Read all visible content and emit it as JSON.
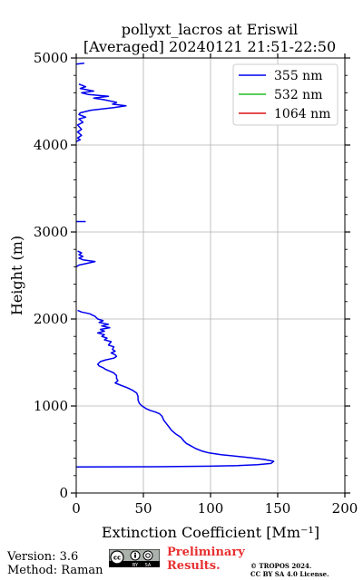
{
  "chart_data": {
    "type": "line",
    "title_line1": "pollyxt_lacros at Eriswil",
    "title_line2": "[Averaged] 20240121 21:51-22:50",
    "xlabel": "Extinction Coefficient [Mm⁻¹]",
    "ylabel": "Height (m)",
    "xlim": [
      0,
      200
    ],
    "ylim": [
      0,
      5000
    ],
    "x_ticks": [
      "0",
      "50",
      "100",
      "150",
      "200"
    ],
    "y_ticks": [
      "0",
      "1000",
      "2000",
      "3000",
      "4000",
      "5000"
    ],
    "x_tick_values": [
      0,
      50,
      100,
      150,
      200
    ],
    "y_tick_values": [
      0,
      1000,
      2000,
      3000,
      4000,
      5000
    ],
    "grid": true,
    "legend_position": "top-right",
    "series": [
      {
        "name": "355 nm",
        "color": "#0000ee",
        "segments": [
          [
            [
              0,
              300
            ],
            [
              60,
              302
            ],
            [
              100,
              308
            ],
            [
              120,
              315
            ],
            [
              135,
              325
            ],
            [
              145,
              340
            ],
            [
              147,
              365
            ],
            [
              140,
              385
            ],
            [
              130,
              405
            ],
            [
              118,
              425
            ],
            [
              108,
              440
            ],
            [
              99,
              460
            ],
            [
              94,
              480
            ],
            [
              89,
              510
            ],
            [
              85,
              545
            ],
            [
              82,
              570
            ],
            [
              80,
              600
            ],
            [
              78,
              640
            ],
            [
              74,
              680
            ],
            [
              71,
              720
            ],
            [
              69,
              760
            ],
            [
              67,
              800
            ],
            [
              65,
              840
            ],
            [
              64,
              880
            ],
            [
              62,
              910
            ],
            [
              59,
              930
            ],
            [
              55,
              950
            ],
            [
              52,
              970
            ],
            [
              49,
              1000
            ],
            [
              47,
              1030
            ],
            [
              46,
              1070
            ],
            [
              46,
              1110
            ],
            [
              45,
              1150
            ],
            [
              42,
              1180
            ],
            [
              38,
              1210
            ],
            [
              33,
              1240
            ],
            [
              29,
              1265
            ],
            [
              31,
              1290
            ],
            [
              30,
              1320
            ],
            [
              30,
              1350
            ],
            [
              28,
              1380
            ],
            [
              25,
              1400
            ],
            [
              22,
              1420
            ],
            [
              20,
              1440
            ],
            [
              17,
              1460
            ],
            [
              16,
              1480
            ],
            [
              18,
              1510
            ],
            [
              22,
              1530
            ],
            [
              28,
              1550
            ],
            [
              30,
              1570
            ],
            [
              29,
              1590
            ],
            [
              26,
              1610
            ],
            [
              29,
              1630
            ],
            [
              27,
              1650
            ],
            [
              28,
              1680
            ],
            [
              24,
              1700
            ],
            [
              25,
              1720
            ],
            [
              26,
              1740
            ],
            [
              21,
              1760
            ],
            [
              23,
              1780
            ],
            [
              19,
              1800
            ],
            [
              21,
              1820
            ],
            [
              16,
              1840
            ],
            [
              21,
              1860
            ],
            [
              18,
              1880
            ],
            [
              25,
              1900
            ],
            [
              19,
              1920
            ],
            [
              24,
              1940
            ],
            [
              17,
              1960
            ],
            [
              20,
              1980
            ],
            [
              16,
              2000
            ],
            [
              14,
              2030
            ],
            [
              10,
              2060
            ],
            [
              4,
              2080
            ],
            [
              1,
              2100
            ]
          ],
          [
            [
              0,
              2600
            ],
            [
              2,
              2620
            ],
            [
              8,
              2640
            ],
            [
              14,
              2660
            ],
            [
              5,
              2680
            ],
            [
              2,
              2700
            ],
            [
              5,
              2720
            ],
            [
              2,
              2740
            ],
            [
              4,
              2760
            ],
            [
              1,
              2780
            ]
          ],
          [
            [
              0,
              3120
            ],
            [
              7,
              3120
            ]
          ],
          [
            [
              0,
              4040
            ],
            [
              3,
              4060
            ],
            [
              1,
              4080
            ],
            [
              4,
              4110
            ],
            [
              1,
              4150
            ],
            [
              4,
              4180
            ],
            [
              1,
              4230
            ],
            [
              5,
              4260
            ],
            [
              2,
              4300
            ],
            [
              7,
              4320
            ],
            [
              2,
              4350
            ],
            [
              3,
              4370
            ],
            [
              11,
              4400
            ],
            [
              28,
              4430
            ],
            [
              37,
              4450
            ],
            [
              27,
              4470
            ],
            [
              30,
              4490
            ],
            [
              21,
              4520
            ],
            [
              13,
              4540
            ],
            [
              24,
              4560
            ],
            [
              9,
              4580
            ],
            [
              4,
              4600
            ],
            [
              13,
              4620
            ],
            [
              3,
              4650
            ],
            [
              7,
              4670
            ],
            [
              2,
              4700
            ]
          ],
          [
            [
              0,
              4930
            ],
            [
              6,
              4940
            ]
          ]
        ]
      },
      {
        "name": "532 nm",
        "color": "#22bb22",
        "segments": []
      },
      {
        "name": "1064 nm",
        "color": "#dd1111",
        "segments": []
      }
    ]
  },
  "footer": {
    "version": "Version: 3.6",
    "method": "Method: Raman",
    "preliminary_line1": "Preliminary",
    "preliminary_line2": "Results.",
    "copyright_line1": "© TROPOS 2024.",
    "copyright_line2": "CC BY SA 4.0 License."
  },
  "cc_badge": {
    "icon": "cc-by-sa-license-icon",
    "labels": [
      "cc",
      "BY",
      "SA"
    ]
  }
}
